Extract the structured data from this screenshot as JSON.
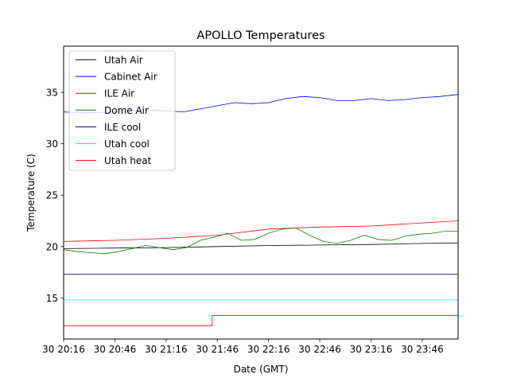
{
  "chart_data": {
    "type": "line",
    "title": "APOLLO Temperatures",
    "xlabel": "Date (GMT)",
    "ylabel": "Temperature (C)",
    "x_unit": "minutes since 30 20:00 GMT",
    "xlim": [
      0,
      231
    ],
    "ylim": [
      11,
      39.5
    ],
    "grid": false,
    "legend_position": "upper-left",
    "x_ticks": [
      {
        "value": 0,
        "label": "30 20:16"
      },
      {
        "value": 30,
        "label": "30 20:46"
      },
      {
        "value": 60,
        "label": "30 21:16"
      },
      {
        "value": 90,
        "label": "30 21:46"
      },
      {
        "value": 120,
        "label": "30 22:16"
      },
      {
        "value": 150,
        "label": "30 22:46"
      },
      {
        "value": 180,
        "label": "30 23:16"
      },
      {
        "value": 210,
        "label": "30 23:46"
      }
    ],
    "y_ticks": [
      {
        "value": 15,
        "label": "15"
      },
      {
        "value": 20,
        "label": "20"
      },
      {
        "value": 25,
        "label": "25"
      },
      {
        "value": 30,
        "label": "30"
      },
      {
        "value": 35,
        "label": "35"
      }
    ],
    "series": [
      {
        "name": "Utah Air",
        "color": "#000000",
        "x": [
          0,
          30,
          60,
          90,
          120,
          150,
          180,
          210,
          231
        ],
        "y": [
          19.8,
          19.85,
          19.9,
          20.0,
          20.1,
          20.15,
          20.2,
          20.3,
          20.35
        ]
      },
      {
        "name": "Cabinet Air",
        "color": "#0000ff",
        "x": [
          0,
          10,
          20,
          30,
          40,
          50,
          60,
          70,
          80,
          90,
          100,
          110,
          120,
          130,
          140,
          150,
          160,
          170,
          180,
          190,
          200,
          210,
          220,
          231
        ],
        "y": [
          33.1,
          33.0,
          33.05,
          33.1,
          33.2,
          33.3,
          33.2,
          33.1,
          33.4,
          33.7,
          34.0,
          33.9,
          34.0,
          34.4,
          34.6,
          34.5,
          34.2,
          34.2,
          34.4,
          34.2,
          34.3,
          34.5,
          34.6,
          34.8
        ]
      },
      {
        "name": "ILE Air",
        "color": "#ff0000",
        "x": [
          0,
          30,
          60,
          90,
          120,
          150,
          180,
          210,
          231
        ],
        "y": [
          20.5,
          20.6,
          20.8,
          21.1,
          21.7,
          21.9,
          22.0,
          22.3,
          22.5
        ]
      },
      {
        "name": "Dome Air",
        "color": "#008000",
        "x": [
          0,
          8,
          16,
          24,
          32,
          40,
          48,
          56,
          64,
          72,
          80,
          88,
          96,
          104,
          112,
          120,
          128,
          136,
          144,
          152,
          160,
          168,
          176,
          184,
          192,
          200,
          208,
          216,
          224,
          231
        ],
        "y": [
          19.7,
          19.5,
          19.4,
          19.3,
          19.5,
          19.8,
          20.1,
          19.9,
          19.7,
          19.9,
          20.6,
          20.9,
          21.3,
          20.6,
          20.7,
          21.3,
          21.7,
          21.8,
          21.1,
          20.5,
          20.3,
          20.6,
          21.1,
          20.7,
          20.6,
          21.0,
          21.2,
          21.3,
          21.5,
          21.5
        ]
      },
      {
        "name": "ILE cool",
        "color": "#000080",
        "x": [
          0,
          231
        ],
        "y": [
          17.3,
          17.3
        ]
      },
      {
        "name": "Utah cool",
        "color": "#00ffff",
        "x": [
          0,
          231
        ],
        "y": [
          14.8,
          14.8
        ]
      },
      {
        "name": "Utah heat",
        "color": "#ff0000",
        "x": [
          0,
          87,
          87,
          231
        ],
        "y": [
          12.3,
          12.3,
          13.3,
          13.3
        ]
      }
    ]
  }
}
